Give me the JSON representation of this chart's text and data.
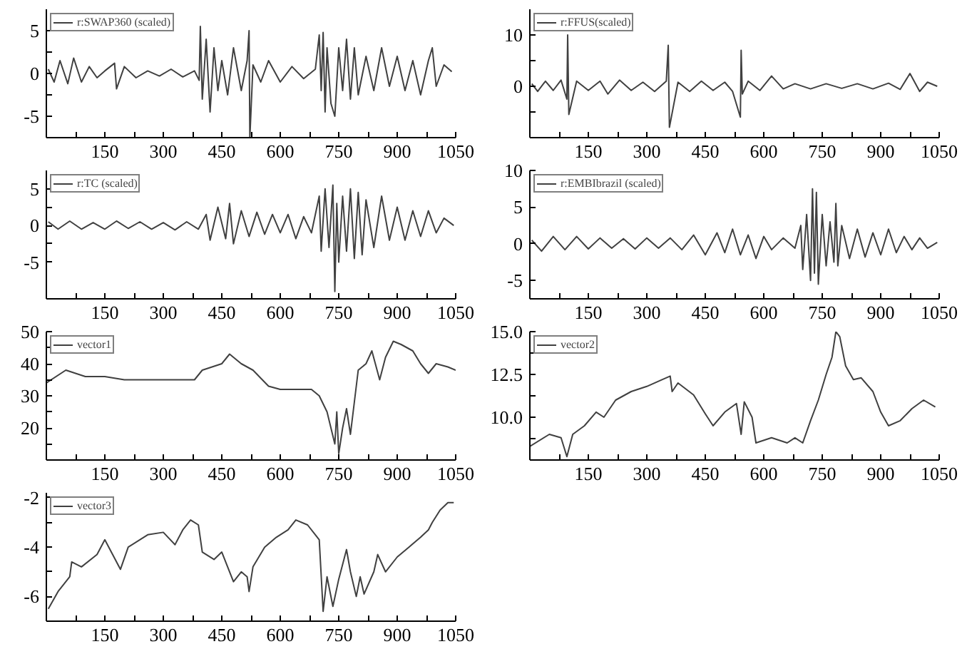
{
  "chart_data": [
    {
      "type": "line",
      "legend": "top left",
      "xlim": [
        0,
        1050
      ],
      "xticks": [
        {
          "value": 75,
          "label": null
        },
        150,
        {
          "value": 225,
          "label": null
        },
        300,
        {
          "value": 375,
          "label": null
        },
        450,
        {
          "value": 525,
          "label": null
        },
        600,
        {
          "value": 675,
          "label": null
        },
        750,
        {
          "value": 825,
          "label": null
        },
        900,
        {
          "value": 975,
          "label": null
        },
        1050
      ],
      "ylim": [
        -7.5,
        7.5
      ],
      "yticks": [
        -5,
        {
          "value": -2.5,
          "label": null
        },
        0,
        {
          "value": 2.5,
          "label": null
        },
        5
      ],
      "series": [
        {
          "name": "r:SWAP360 (scaled)",
          "color": "#404040",
          "x": [
            5,
            20,
            35,
            55,
            70,
            90,
            110,
            130,
            150,
            175,
            180,
            200,
            230,
            260,
            290,
            320,
            350,
            380,
            392,
            395,
            400,
            410,
            420,
            430,
            440,
            450,
            465,
            480,
            500,
            515,
            520,
            522,
            530,
            550,
            570,
            600,
            630,
            660,
            690,
            700,
            705,
            710,
            715,
            720,
            730,
            740,
            750,
            760,
            770,
            780,
            790,
            800,
            820,
            840,
            860,
            880,
            900,
            920,
            940,
            960,
            980,
            990,
            1000,
            1020,
            1040
          ],
          "values": [
            0.5,
            -1,
            1.5,
            -1.2,
            1.8,
            -1,
            0.8,
            -0.5,
            0.3,
            1.2,
            -1.8,
            0.8,
            -0.5,
            0.3,
            -0.3,
            0.5,
            -0.4,
            0.3,
            -0.8,
            5.5,
            -3,
            4,
            -4.5,
            3,
            -2,
            1.5,
            -2.5,
            3,
            -2,
            1.5,
            5,
            -7.5,
            1,
            -1,
            1.5,
            -1,
            0.8,
            -0.6,
            0.5,
            4.5,
            -2,
            4.8,
            -4.5,
            3,
            -3.5,
            -5,
            3,
            -2,
            4,
            -3,
            3,
            -2.5,
            2,
            -2,
            3,
            -1.5,
            2,
            -2,
            1.5,
            -2.5,
            1.5,
            3,
            -1.5,
            1,
            0.2
          ]
        }
      ]
    },
    {
      "type": "line",
      "legend": "top left",
      "xlim": [
        0,
        1050
      ],
      "xticks": [
        {
          "value": 75,
          "label": null
        },
        150,
        {
          "value": 225,
          "label": null
        },
        300,
        {
          "value": 375,
          "label": null
        },
        450,
        {
          "value": 525,
          "label": null
        },
        600,
        {
          "value": 675,
          "label": null
        },
        750,
        {
          "value": 825,
          "label": null
        },
        900,
        {
          "value": 975,
          "label": null
        },
        1050
      ],
      "ylim": [
        -10,
        15
      ],
      "yticks": [
        {
          "value": -5,
          "label": null
        },
        0,
        {
          "value": 5,
          "label": null
        },
        10
      ],
      "series": [
        {
          "name": "r:FFUS(scaled)",
          "color": "#404040",
          "x": [
            5,
            20,
            40,
            60,
            80,
            95,
            97,
            100,
            120,
            150,
            180,
            200,
            230,
            260,
            290,
            320,
            350,
            355,
            358,
            380,
            410,
            440,
            470,
            500,
            520,
            540,
            542,
            545,
            560,
            590,
            620,
            650,
            680,
            720,
            760,
            800,
            840,
            880,
            920,
            950,
            975,
            1000,
            1020,
            1045
          ],
          "values": [
            0.5,
            -1,
            1,
            -0.8,
            1.2,
            -2.5,
            10,
            -5.5,
            1,
            -0.8,
            1,
            -1.5,
            1.2,
            -0.8,
            0.8,
            -1,
            1,
            8,
            -8,
            0.8,
            -1,
            1,
            -0.8,
            0.8,
            -1,
            -6,
            7,
            -1.5,
            1,
            -0.8,
            2,
            -0.5,
            0.5,
            -0.5,
            0.5,
            -0.4,
            0.5,
            -0.5,
            0.6,
            -0.6,
            2.5,
            -1,
            0.8,
            0
          ]
        }
      ]
    },
    {
      "type": "line",
      "legend": "top left",
      "xlim": [
        0,
        1050
      ],
      "xticks": [
        {
          "value": 75,
          "label": null
        },
        150,
        {
          "value": 225,
          "label": null
        },
        300,
        {
          "value": 375,
          "label": null
        },
        450,
        {
          "value": 525,
          "label": null
        },
        600,
        {
          "value": 675,
          "label": null
        },
        750,
        {
          "value": 825,
          "label": null
        },
        900,
        {
          "value": 975,
          "label": null
        },
        1050
      ],
      "ylim": [
        -10,
        7.5
      ],
      "yticks": [
        -5,
        {
          "value": -2.5,
          "label": null
        },
        0,
        {
          "value": 2.5,
          "label": null
        },
        5
      ],
      "series": [
        {
          "name": "r:TC (scaled)",
          "color": "#404040",
          "x": [
            5,
            30,
            60,
            90,
            120,
            150,
            180,
            210,
            240,
            270,
            300,
            330,
            360,
            390,
            410,
            420,
            440,
            460,
            470,
            480,
            500,
            520,
            540,
            560,
            580,
            600,
            620,
            640,
            660,
            680,
            700,
            705,
            715,
            725,
            735,
            740,
            745,
            750,
            760,
            770,
            780,
            790,
            800,
            810,
            820,
            840,
            860,
            880,
            900,
            920,
            940,
            960,
            980,
            1000,
            1020,
            1045
          ],
          "values": [
            0.5,
            -0.5,
            0.6,
            -0.5,
            0.4,
            -0.5,
            0.6,
            -0.4,
            0.5,
            -0.5,
            0.4,
            -0.6,
            0.5,
            -0.5,
            1.5,
            -2,
            2.5,
            -1.8,
            3,
            -2.5,
            2,
            -1.5,
            1.8,
            -1.2,
            1.5,
            -1,
            1.5,
            -1.8,
            1.2,
            -1,
            4,
            -3.5,
            5,
            -3,
            5.5,
            -9,
            3,
            -5,
            4,
            -3.5,
            5,
            -4.5,
            4.5,
            -4,
            3.5,
            -3,
            4,
            -2,
            2.5,
            -2,
            2,
            -1.5,
            2,
            -1,
            1,
            0
          ]
        }
      ]
    },
    {
      "type": "line",
      "legend": "top left",
      "xlim": [
        0,
        1050
      ],
      "xticks": [
        {
          "value": 75,
          "label": null
        },
        150,
        {
          "value": 225,
          "label": null
        },
        300,
        {
          "value": 375,
          "label": null
        },
        450,
        {
          "value": 525,
          "label": null
        },
        600,
        {
          "value": 675,
          "label": null
        },
        750,
        {
          "value": 825,
          "label": null
        },
        900,
        {
          "value": 975,
          "label": null
        },
        1050
      ],
      "ylim": [
        -7.5,
        10
      ],
      "yticks": [
        -5,
        0,
        5,
        10
      ],
      "series": [
        {
          "name": "r:EMBIbrazil (scaled)",
          "color": "#404040",
          "x": [
            5,
            30,
            60,
            90,
            120,
            150,
            180,
            210,
            240,
            270,
            300,
            330,
            360,
            390,
            420,
            450,
            480,
            500,
            520,
            540,
            560,
            580,
            600,
            620,
            650,
            680,
            695,
            700,
            710,
            720,
            725,
            730,
            735,
            740,
            750,
            760,
            770,
            780,
            785,
            790,
            800,
            820,
            840,
            860,
            880,
            900,
            920,
            940,
            960,
            980,
            1000,
            1020,
            1045
          ],
          "values": [
            0.5,
            -1,
            1,
            -0.8,
            1,
            -0.7,
            0.8,
            -0.6,
            0.7,
            -0.7,
            0.8,
            -0.6,
            0.8,
            -0.8,
            1.2,
            -1.5,
            1.5,
            -1.2,
            2,
            -1.5,
            1.2,
            -2,
            1,
            -0.8,
            0.8,
            -0.6,
            2.5,
            -3.5,
            4,
            -5,
            7.5,
            -4,
            7,
            -5.5,
            4,
            -3,
            3,
            -2.5,
            5.5,
            -3,
            2.5,
            -2,
            2,
            -1.8,
            1.5,
            -1.5,
            2,
            -1.2,
            1,
            -0.8,
            0.8,
            -0.6,
            0.2
          ]
        }
      ]
    },
    {
      "type": "line",
      "legend": "top left",
      "xlim": [
        0,
        1050
      ],
      "xticks": [
        {
          "value": 75,
          "label": null
        },
        150,
        {
          "value": 225,
          "label": null
        },
        300,
        {
          "value": 375,
          "label": null
        },
        450,
        {
          "value": 525,
          "label": null
        },
        600,
        {
          "value": 675,
          "label": null
        },
        750,
        {
          "value": 825,
          "label": null
        },
        900,
        {
          "value": 975,
          "label": null
        },
        1050
      ],
      "ylim": [
        10,
        50
      ],
      "yticks": [
        {
          "value": 15,
          "label": null
        },
        20,
        {
          "value": 25,
          "label": null
        },
        30,
        {
          "value": 35,
          "label": null
        },
        40,
        {
          "value": 45,
          "label": null
        },
        50
      ],
      "series": [
        {
          "name": "vector1",
          "color": "#404040",
          "x": [
            0,
            50,
            100,
            150,
            200,
            380,
            400,
            450,
            470,
            500,
            530,
            570,
            600,
            680,
            700,
            720,
            740,
            745,
            750,
            760,
            770,
            780,
            790,
            800,
            820,
            835,
            855,
            870,
            890,
            910,
            940,
            960,
            980,
            1000,
            1030,
            1050
          ],
          "values": [
            34,
            38,
            36,
            36,
            35,
            35,
            38,
            40,
            43,
            40,
            38,
            33,
            32,
            32,
            30,
            25,
            15,
            25,
            12,
            20,
            26,
            18,
            28,
            38,
            40,
            44,
            35,
            42,
            47,
            46,
            44,
            40,
            37,
            40,
            39,
            38
          ]
        }
      ]
    },
    {
      "type": "line",
      "legend": "top left",
      "xlim": [
        0,
        1050
      ],
      "xticks": [
        {
          "value": 75,
          "label": null
        },
        150,
        {
          "value": 225,
          "label": null
        },
        300,
        {
          "value": 375,
          "label": null
        },
        450,
        {
          "value": 525,
          "label": null
        },
        600,
        {
          "value": 675,
          "label": null
        },
        750,
        {
          "value": 825,
          "label": null
        },
        900,
        {
          "value": 975,
          "label": null
        },
        1050
      ],
      "ylim": [
        7.5,
        15
      ],
      "yticks": [
        {
          "value": 8.75,
          "label": null
        },
        {
          "value": 10,
          "label": "10.0"
        },
        {
          "value": 11.25,
          "label": null
        },
        {
          "value": 12.5,
          "label": "12.5"
        },
        {
          "value": 13.75,
          "label": null
        },
        {
          "value": 15,
          "label": "15.0"
        }
      ],
      "series": [
        {
          "name": "vector2",
          "color": "#404040",
          "x": [
            0,
            50,
            80,
            95,
            110,
            140,
            170,
            190,
            220,
            260,
            300,
            340,
            360,
            365,
            380,
            420,
            450,
            470,
            500,
            530,
            542,
            550,
            570,
            580,
            620,
            660,
            680,
            700,
            720,
            740,
            760,
            775,
            785,
            795,
            810,
            830,
            850,
            880,
            900,
            920,
            950,
            980,
            1010,
            1040
          ],
          "values": [
            8.3,
            9,
            8.8,
            7.7,
            9,
            9.5,
            10.3,
            10,
            11,
            11.5,
            11.8,
            12.2,
            12.4,
            11.5,
            12,
            11.3,
            10.2,
            9.5,
            10.3,
            10.8,
            9,
            10.9,
            10,
            8.5,
            8.8,
            8.5,
            8.8,
            8.5,
            9.8,
            11,
            12.5,
            13.5,
            15,
            14.7,
            13,
            12.2,
            12.3,
            11.5,
            10.3,
            9.5,
            9.8,
            10.5,
            11,
            10.6
          ]
        }
      ]
    },
    {
      "type": "line",
      "legend": "top left",
      "xlim": [
        0,
        1050
      ],
      "xticks": [
        {
          "value": 75,
          "label": null
        },
        150,
        {
          "value": 225,
          "label": null
        },
        300,
        {
          "value": 375,
          "label": null
        },
        450,
        {
          "value": 525,
          "label": null
        },
        600,
        {
          "value": 675,
          "label": null
        },
        750,
        {
          "value": 825,
          "label": null
        },
        900,
        {
          "value": 975,
          "label": null
        },
        1050
      ],
      "ylim": [
        -7,
        -1.8
      ],
      "yticks": [
        -6,
        {
          "value": -5,
          "label": null
        },
        -4,
        {
          "value": -3,
          "label": null
        },
        -2
      ],
      "series": [
        {
          "name": "vector3",
          "color": "#404040",
          "x": [
            5,
            30,
            60,
            65,
            90,
            130,
            150,
            170,
            190,
            210,
            260,
            300,
            330,
            350,
            370,
            390,
            400,
            430,
            450,
            480,
            500,
            515,
            520,
            530,
            560,
            590,
            620,
            640,
            670,
            690,
            700,
            710,
            720,
            735,
            750,
            770,
            780,
            795,
            805,
            815,
            840,
            850,
            870,
            900,
            930,
            960,
            980,
            990,
            1010,
            1030,
            1045
          ],
          "values": [
            -6.5,
            -5.8,
            -5.2,
            -4.6,
            -4.8,
            -4.3,
            -3.7,
            -4.3,
            -4.9,
            -4,
            -3.5,
            -3.4,
            -3.9,
            -3.3,
            -2.9,
            -3.1,
            -4.2,
            -4.5,
            -4.2,
            -5.4,
            -5,
            -5.2,
            -5.8,
            -4.8,
            -4,
            -3.6,
            -3.3,
            -2.9,
            -3.1,
            -3.5,
            -3.7,
            -6.6,
            -5.2,
            -6.4,
            -5.3,
            -4.1,
            -5,
            -6,
            -5.2,
            -5.9,
            -5,
            -4.3,
            -5,
            -4.4,
            -4,
            -3.6,
            -3.3,
            -3,
            -2.5,
            -2.2,
            -2.2
          ]
        }
      ]
    }
  ]
}
